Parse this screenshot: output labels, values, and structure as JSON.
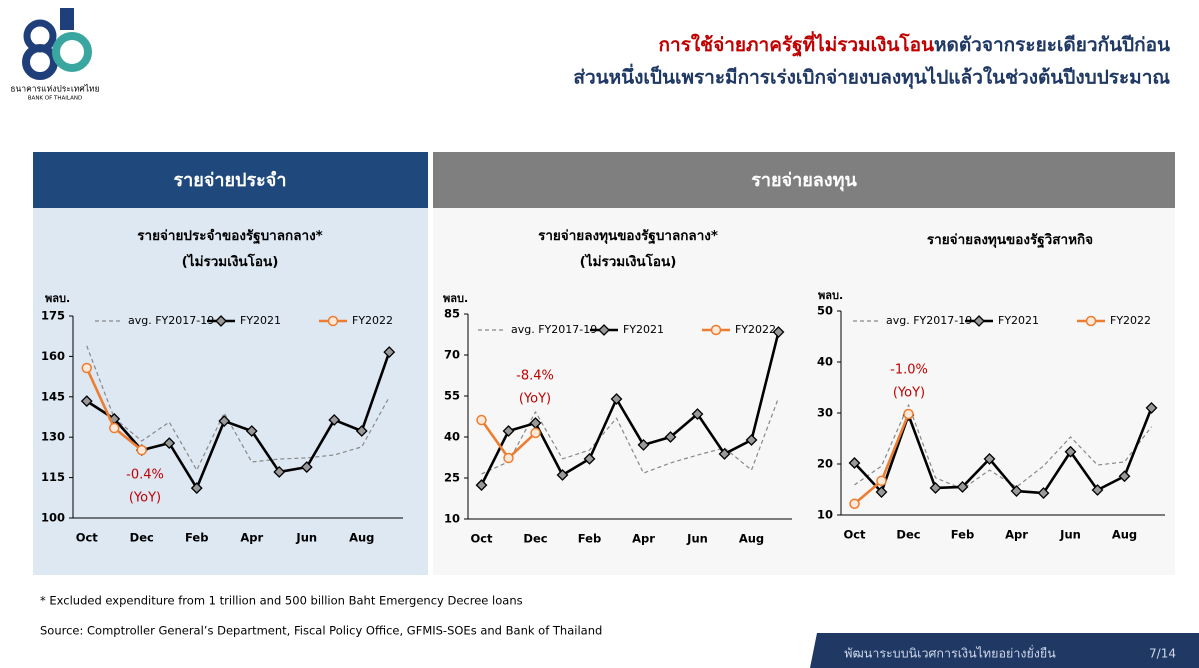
{
  "header": {
    "logo_text": "ธนาคารแห่งประเทศไทย",
    "logo_subtext": "BANK OF THAILAND",
    "title_red": "การใช้จ่ายภาครัฐที่ไม่รวมเงินโอน",
    "title_rest": "หดตัวจากระยะเดียวกันปีก่อน",
    "title_line2": "ส่วนหนึ่งเป็นเพราะมีการเร่งเบิกจ่ายงบลงทุนไปแล้วในช่วงต้นปีงบประมาณ"
  },
  "panels": [
    "รายจ่ายประจำ",
    "รายจ่ายลงทุน"
  ],
  "chart_data": [
    {
      "type": "line",
      "title": [
        "รายจ่ายประจำของรัฐบาลกลาง*",
        "(ไม่รวมเงินโอน)"
      ],
      "y_label": "พลบ.",
      "categories": [
        "Oct",
        null,
        "Dec",
        null,
        "Feb",
        null,
        "Apr",
        null,
        "Jun",
        null,
        "Aug",
        null
      ],
      "ylim": [
        100,
        175
      ],
      "yticks": [
        100,
        115,
        130,
        145,
        160,
        175
      ],
      "annotation": [
        "-0.4%",
        "(YoY)"
      ],
      "series": [
        {
          "name": "avg. FY2017-19",
          "color": "#888888",
          "dashed": true,
          "values": [
            163.9,
            137.1,
            128.6,
            135.6,
            117.8,
            139,
            120.8,
            121.9,
            122.3,
            123.4,
            126.4,
            144.9
          ]
        },
        {
          "name": "FY2021",
          "color": "#000000",
          "marker": "diamond",
          "values": [
            143.4,
            136.8,
            125.2,
            127.8,
            111.1,
            136,
            132.3,
            117.1,
            118.9,
            136.4,
            132.3,
            161.6
          ]
        },
        {
          "name": "FY2022",
          "color": "#ed7d31",
          "marker": "circle",
          "values": [
            155.7,
            133.4,
            125.2,
            null,
            null,
            null,
            null,
            null,
            null,
            null,
            null,
            null
          ]
        }
      ]
    },
    {
      "type": "line",
      "title": [
        "รายจ่ายลงทุนของรัฐบาลกลาง*",
        "(ไม่รวมเงินโอน)"
      ],
      "y_label": "พลบ.",
      "categories": [
        "Oct",
        null,
        "Dec",
        null,
        "Feb",
        null,
        "Apr",
        null,
        "Jun",
        null,
        "Aug",
        null
      ],
      "ylim": [
        10,
        85
      ],
      "yticks": [
        10,
        25,
        40,
        55,
        70,
        85
      ],
      "annotation": [
        "-8.4%",
        "(YoY)"
      ],
      "series": [
        {
          "name": "avg. FY2017-19",
          "color": "#888888",
          "dashed": true,
          "values": [
            26.5,
            30.9,
            49.2,
            32,
            35.2,
            46.9,
            26.8,
            30.5,
            33.4,
            36,
            27.9,
            54.3
          ]
        },
        {
          "name": "FY2021",
          "color": "#000000",
          "marker": "diamond",
          "values": [
            22.4,
            42.2,
            45.1,
            26.1,
            32,
            53.9,
            37.1,
            40,
            48.4,
            33.8,
            38.9,
            78.4
          ]
        },
        {
          "name": "FY2022",
          "color": "#ed7d31",
          "marker": "circle",
          "values": [
            46.2,
            32.3,
            41.5,
            null,
            null,
            null,
            null,
            null,
            null,
            null,
            null,
            null
          ]
        }
      ]
    },
    {
      "type": "line",
      "title": [
        "รายจ่ายลงทุนของรัฐวิสาหกิจ"
      ],
      "y_label": "พลบ.",
      "categories": [
        "Oct",
        null,
        "Dec",
        null,
        "Feb",
        null,
        "Apr",
        null,
        "Jun",
        null,
        "Aug",
        null
      ],
      "ylim": [
        10,
        50
      ],
      "yticks": [
        10,
        20,
        30,
        40,
        50
      ],
      "annotation": [
        "-1.0%",
        "(YoY)"
      ],
      "series": [
        {
          "name": "avg. FY2017-19",
          "color": "#888888",
          "dashed": true,
          "values": [
            15.9,
            19.6,
            31.6,
            17.3,
            15.1,
            18.8,
            15.5,
            19.6,
            25.3,
            19.8,
            20.4,
            27.3
          ]
        },
        {
          "name": "FY2021",
          "color": "#000000",
          "marker": "diamond",
          "values": [
            20.2,
            14.5,
            29.6,
            15.3,
            15.5,
            21,
            14.7,
            14.3,
            22.4,
            14.9,
            17.6,
            31
          ]
        },
        {
          "name": "FY2022",
          "color": "#ed7d31",
          "marker": "circle",
          "values": [
            12.2,
            16.7,
            29.8,
            null,
            null,
            null,
            null,
            null,
            null,
            null,
            null,
            null
          ]
        }
      ]
    }
  ],
  "footnote": "* Excluded expenditure from 1 trillion and 500 billion Baht Emergency Decree loans",
  "source": "Source: Comptroller General’s Department, Fiscal Policy Office, GFMIS-SOEs and Bank of Thailand",
  "footer": {
    "slogan": "พัฒนาระบบนิเวศการเงินไทยอย่างยั่งยืน",
    "page": "7/14"
  }
}
